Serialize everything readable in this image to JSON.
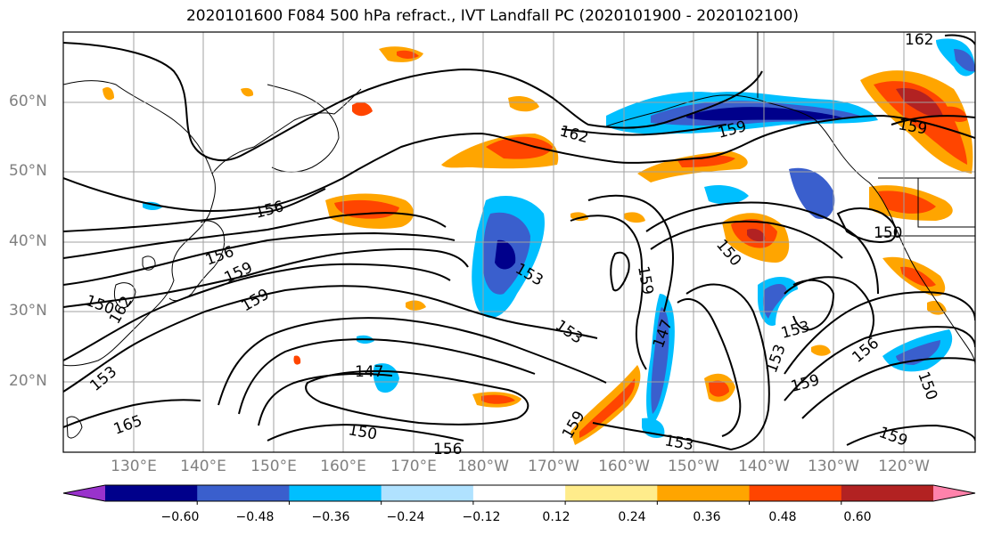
{
  "title": "2020101600 F084 500 hPa refract., IVT Landfall PC (2020101900 - 2020102100)",
  "lat_labels": [
    "60°N",
    "50°N",
    "40°N",
    "30°N",
    "20°N"
  ],
  "lon_labels": [
    "130°E",
    "140°E",
    "150°E",
    "160°E",
    "170°E",
    "180°W",
    "170°W",
    "160°W",
    "150°W",
    "140°W",
    "130°W",
    "120°W"
  ],
  "colorbar": {
    "colors": [
      "#9932cc",
      "#00008b",
      "#3a5fcd",
      "#00bfff",
      "#b0e2ff",
      "#ffffff",
      "#ffec8b",
      "#ffa500",
      "#ff4500",
      "#b22222",
      "#ff82ab"
    ],
    "tick_labels": [
      "−0.60",
      "−0.48",
      "−0.36",
      "−0.24",
      "−0.12",
      "0.12",
      "0.24",
      "0.36",
      "0.48",
      "0.60"
    ]
  },
  "contour_labels": [
    "162",
    "162",
    "159",
    "159",
    "156",
    "156",
    "159",
    "159",
    "150",
    "153",
    "165",
    "147",
    "150",
    "156",
    "153",
    "153",
    "159",
    "147",
    "150",
    "153",
    "159",
    "150",
    "153",
    "153",
    "156",
    "159",
    "150",
    "159",
    "162"
  ]
}
